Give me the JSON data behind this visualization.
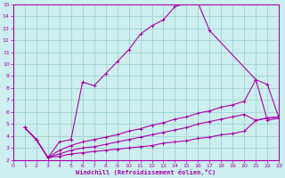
{
  "xlabel": "Windchill (Refroidissement éolien,°C)",
  "xlim": [
    0,
    23
  ],
  "ylim": [
    2,
    15
  ],
  "xticks": [
    0,
    1,
    2,
    3,
    4,
    5,
    6,
    7,
    8,
    9,
    10,
    11,
    12,
    13,
    14,
    15,
    16,
    17,
    18,
    19,
    20,
    21,
    22,
    23
  ],
  "yticks": [
    2,
    3,
    4,
    5,
    6,
    7,
    8,
    9,
    10,
    11,
    12,
    13,
    14,
    15
  ],
  "bg_color": "#cceeee",
  "line_color": "#aa00aa",
  "grid_color": "#99cccc",
  "curve1_x": [
    1,
    2,
    3,
    4,
    5,
    6,
    7,
    8,
    9,
    10,
    11,
    12,
    13,
    14,
    15,
    16,
    17,
    21,
    22,
    23
  ],
  "curve1_y": [
    4.7,
    3.7,
    2.2,
    3.5,
    3.7,
    8.5,
    8.2,
    9.2,
    10.2,
    11.2,
    12.5,
    13.2,
    13.7,
    14.8,
    15.1,
    15.1,
    12.8,
    8.7,
    5.3,
    5.5
  ],
  "curve2_x": [
    1,
    2,
    3,
    4,
    5,
    6,
    7,
    8,
    9,
    10,
    11,
    12,
    13,
    14,
    15,
    16,
    17,
    18,
    19,
    20,
    21,
    22,
    23
  ],
  "curve2_y": [
    4.7,
    3.7,
    2.2,
    2.8,
    3.2,
    3.5,
    3.7,
    3.9,
    4.1,
    4.4,
    4.6,
    4.9,
    5.1,
    5.4,
    5.6,
    5.9,
    6.1,
    6.4,
    6.6,
    6.9,
    8.7,
    8.3,
    5.5
  ],
  "curve3_x": [
    1,
    2,
    3,
    4,
    5,
    6,
    7,
    8,
    9,
    10,
    11,
    12,
    13,
    14,
    15,
    16,
    17,
    18,
    19,
    20,
    21,
    22,
    23
  ],
  "curve3_y": [
    4.7,
    3.7,
    2.2,
    2.5,
    2.8,
    3.0,
    3.1,
    3.3,
    3.5,
    3.7,
    3.9,
    4.1,
    4.3,
    4.5,
    4.7,
    5.0,
    5.2,
    5.4,
    5.6,
    5.8,
    5.3,
    5.5,
    5.6
  ],
  "curve4_x": [
    1,
    2,
    3,
    4,
    5,
    6,
    7,
    8,
    9,
    10,
    11,
    12,
    13,
    14,
    15,
    16,
    17,
    18,
    19,
    20,
    21,
    22,
    23
  ],
  "curve4_y": [
    4.7,
    3.7,
    2.2,
    2.3,
    2.5,
    2.6,
    2.7,
    2.8,
    2.9,
    3.0,
    3.1,
    3.2,
    3.4,
    3.5,
    3.6,
    3.8,
    3.9,
    4.1,
    4.2,
    4.4,
    5.3,
    5.5,
    5.6
  ]
}
